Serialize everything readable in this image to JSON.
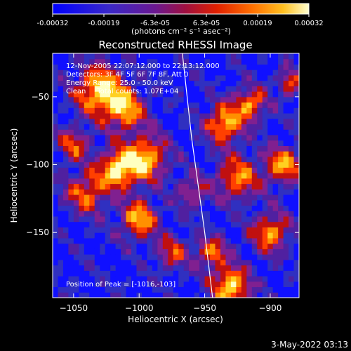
{
  "colorbar": {
    "tick_labels": [
      "-0.00032",
      "-0.00019",
      "-6.3e-05",
      "6.3e-05",
      "0.00019",
      "0.00032"
    ],
    "unit_label": "(photons cm⁻² s⁻¹ asec⁻²)",
    "range": [
      -0.00032,
      0.00032
    ]
  },
  "chart_data": {
    "type": "heatmap",
    "title": "Reconstructed RHESSI Image",
    "xlabel": "Heliocentric X (arcsec)",
    "ylabel": "Heliocentric Y (arcsec)",
    "xlim": [
      -1066,
      -878
    ],
    "ylim": [
      -198,
      -18
    ],
    "x_ticks": [
      -1050,
      -1000,
      -950,
      -900
    ],
    "y_ticks": [
      -50,
      -100,
      -150
    ],
    "x_tick_labels": [
      "−1050",
      "−1000",
      "−950",
      "−900"
    ],
    "y_tick_labels": [
      "−50",
      "−100",
      "−150"
    ],
    "colormap": [
      "#1010ff",
      "#3030c0",
      "#5020a0",
      "#802090",
      "#c01010",
      "#ff4000",
      "#ff9000",
      "#ffd020",
      "#ffffc0"
    ],
    "peak": [
      -1016,
      -103
    ],
    "limb": [
      [
        -967,
        -18
      ],
      [
        -960,
        -80
      ],
      [
        -950,
        -150
      ],
      [
        -944,
        -198
      ]
    ],
    "annotations": [
      "12-Nov-2005 22:07:12.000 to 22:13:12.000",
      "Detectors: 3F 4F 5F 6F 7F 8F, Att 0",
      "Energy Range: 25.0 - 50.0 keV",
      "Clean     Total counts: 1.07E+04"
    ],
    "peak_label": "Position of Peak = [-1016,-103]"
  },
  "footer": {
    "timestamp": "3-May-2022 03:13"
  }
}
